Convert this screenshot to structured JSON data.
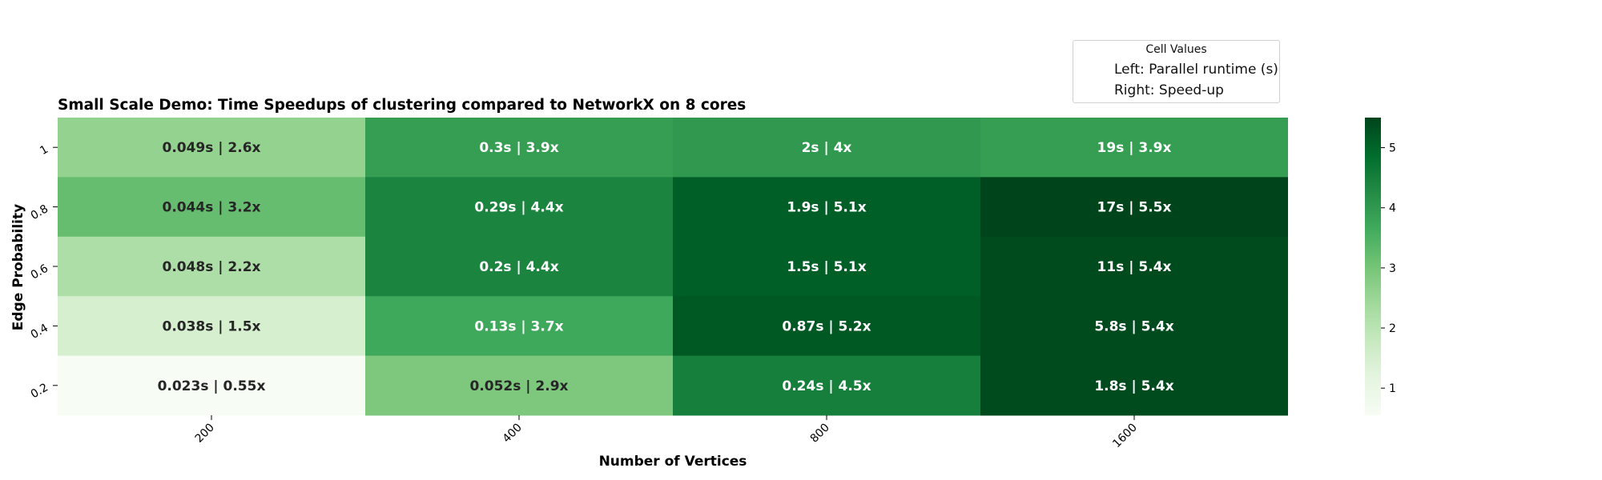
{
  "chart_data": {
    "type": "heatmap",
    "title": "Small Scale Demo: Time Speedups of clustering compared to NetworkX on 8 cores",
    "xlabel": "Number of Vertices",
    "ylabel": "Edge Probability",
    "x_categories": [
      "200",
      "400",
      "800",
      "1600"
    ],
    "y_categories": [
      "1",
      "0.8",
      "0.6",
      "0.4",
      "0.2"
    ],
    "values": [
      [
        2.6,
        3.9,
        4.0,
        3.9
      ],
      [
        3.2,
        4.4,
        5.1,
        5.5
      ],
      [
        2.2,
        4.4,
        5.1,
        5.4
      ],
      [
        1.5,
        3.7,
        5.2,
        5.4
      ],
      [
        0.55,
        2.9,
        4.5,
        5.4
      ]
    ],
    "cell_labels": [
      [
        "0.049s | 2.6x",
        "0.3s | 3.9x",
        "2s | 4x",
        "19s | 3.9x"
      ],
      [
        "0.044s | 3.2x",
        "0.29s | 4.4x",
        "1.9s | 5.1x",
        "17s | 5.5x"
      ],
      [
        "0.048s | 2.2x",
        "0.2s | 4.4x",
        "1.5s | 5.1x",
        "11s | 5.4x"
      ],
      [
        "0.038s | 1.5x",
        "0.13s | 3.7x",
        "0.87s | 5.2x",
        "5.8s | 5.4x"
      ],
      [
        "0.023s | 0.55x",
        "0.052s | 2.9x",
        "0.24s | 4.5x",
        "1.8s | 5.4x"
      ]
    ],
    "colorbar": {
      "colormap": "Greens",
      "range": [
        0.55,
        5.5
      ],
      "ticks": [
        "1",
        "2",
        "3",
        "4",
        "5"
      ],
      "tick_values": [
        1,
        2,
        3,
        4,
        5
      ]
    },
    "legend": {
      "title": "Cell Values",
      "entries": [
        "Left: Parallel runtime (s)",
        "Right: Speed-up"
      ],
      "placement": "top-right"
    }
  }
}
